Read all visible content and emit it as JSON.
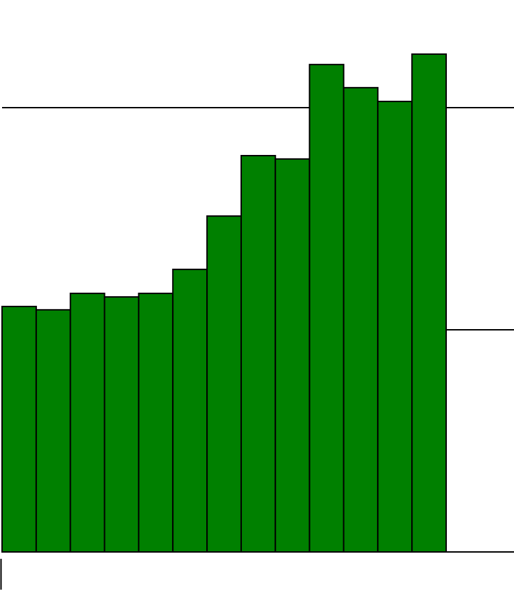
{
  "chart_data": {
    "type": "bar",
    "categories": [
      null,
      null,
      null,
      null,
      null,
      null,
      null,
      null,
      null,
      null,
      null,
      null,
      null
    ],
    "values": [
      110.5,
      109.0,
      116.4,
      114.8,
      116.4,
      127.2,
      151.2,
      178.4,
      176.9,
      219.4,
      209.0,
      202.8,
      224.1
    ],
    "color": "#008000",
    "ylim": [
      0,
      250
    ],
    "yticks": [
      0,
      100,
      200
    ],
    "grid": true
  }
}
